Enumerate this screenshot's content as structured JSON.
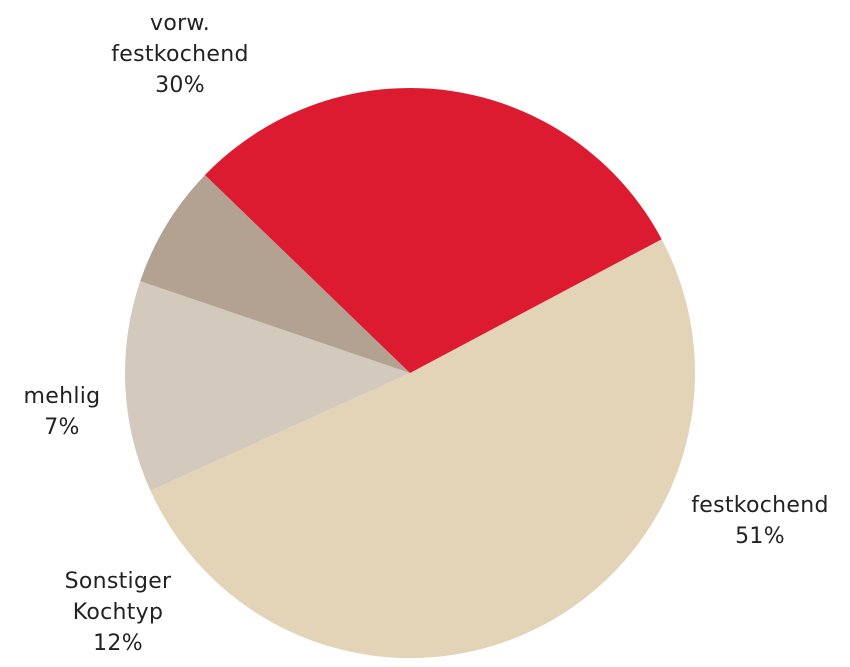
{
  "chart_data": {
    "type": "pie",
    "title": "",
    "slices": [
      {
        "label_lines": [
          "festkochend"
        ],
        "value": 51,
        "value_label": "51%",
        "color": "#e3d4b8"
      },
      {
        "label_lines": [
          "Sonstiger",
          "Kochtyp"
        ],
        "value": 12,
        "value_label": "12%",
        "color": "#d4c9bd"
      },
      {
        "label_lines": [
          "mehlig"
        ],
        "value": 7,
        "value_label": "7%",
        "color": "#b3a292"
      },
      {
        "label_lines": [
          "vorw.",
          "festkochend"
        ],
        "value": 30,
        "value_label": "30%",
        "color": "#dc1a30"
      }
    ]
  }
}
